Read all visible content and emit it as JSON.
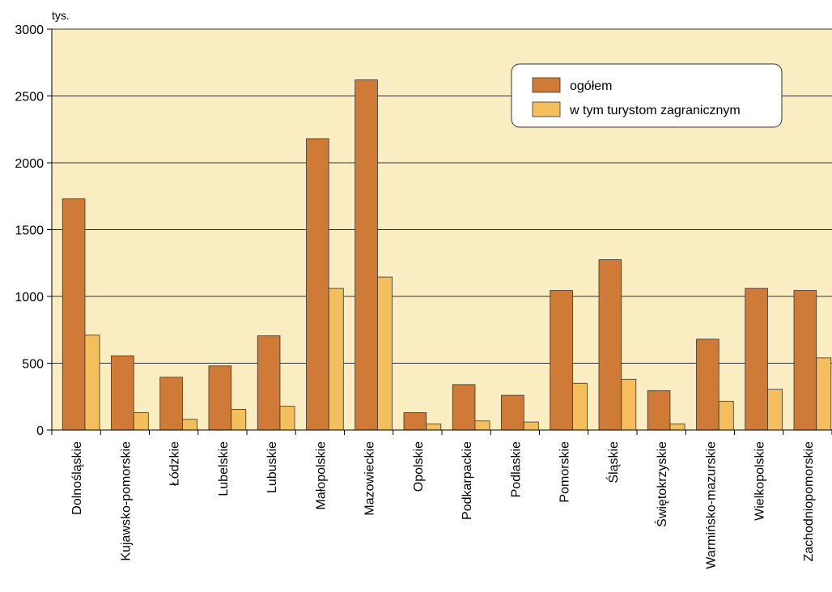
{
  "chart_data": {
    "type": "bar",
    "unit_label": "tys.",
    "categories": [
      "Dolnośląskie",
      "Kujawsko-pomorskie",
      "Łódzkie",
      "Lubelskie",
      "Lubuskie",
      "Małopolskie",
      "Mazowieckie",
      "Opolskie",
      "Podkarpackie",
      "Podlaskie",
      "Pomorskie",
      "Śląskie",
      "Świętokrzyskie",
      "Warmińsko-mazurskie",
      "Wielkopolskie",
      "Zachodniopomorskie"
    ],
    "series": [
      {
        "name": "ogółem",
        "color": "#d07a38",
        "values": [
          1730,
          555,
          395,
          480,
          705,
          2180,
          2620,
          130,
          340,
          260,
          1045,
          1275,
          295,
          680,
          1060,
          1045
        ]
      },
      {
        "name": "w tym turystom zagranicznym",
        "color": "#f4be5c",
        "values": [
          710,
          130,
          80,
          155,
          178,
          1060,
          1145,
          45,
          68,
          60,
          350,
          380,
          45,
          215,
          305,
          540
        ]
      }
    ],
    "ylim": [
      0,
      3000
    ],
    "yticks": [
      0,
      500,
      1000,
      1500,
      2000,
      2500,
      3000
    ],
    "grid": true,
    "legend_position": "top-right",
    "plot_background": "#fbedc2"
  }
}
